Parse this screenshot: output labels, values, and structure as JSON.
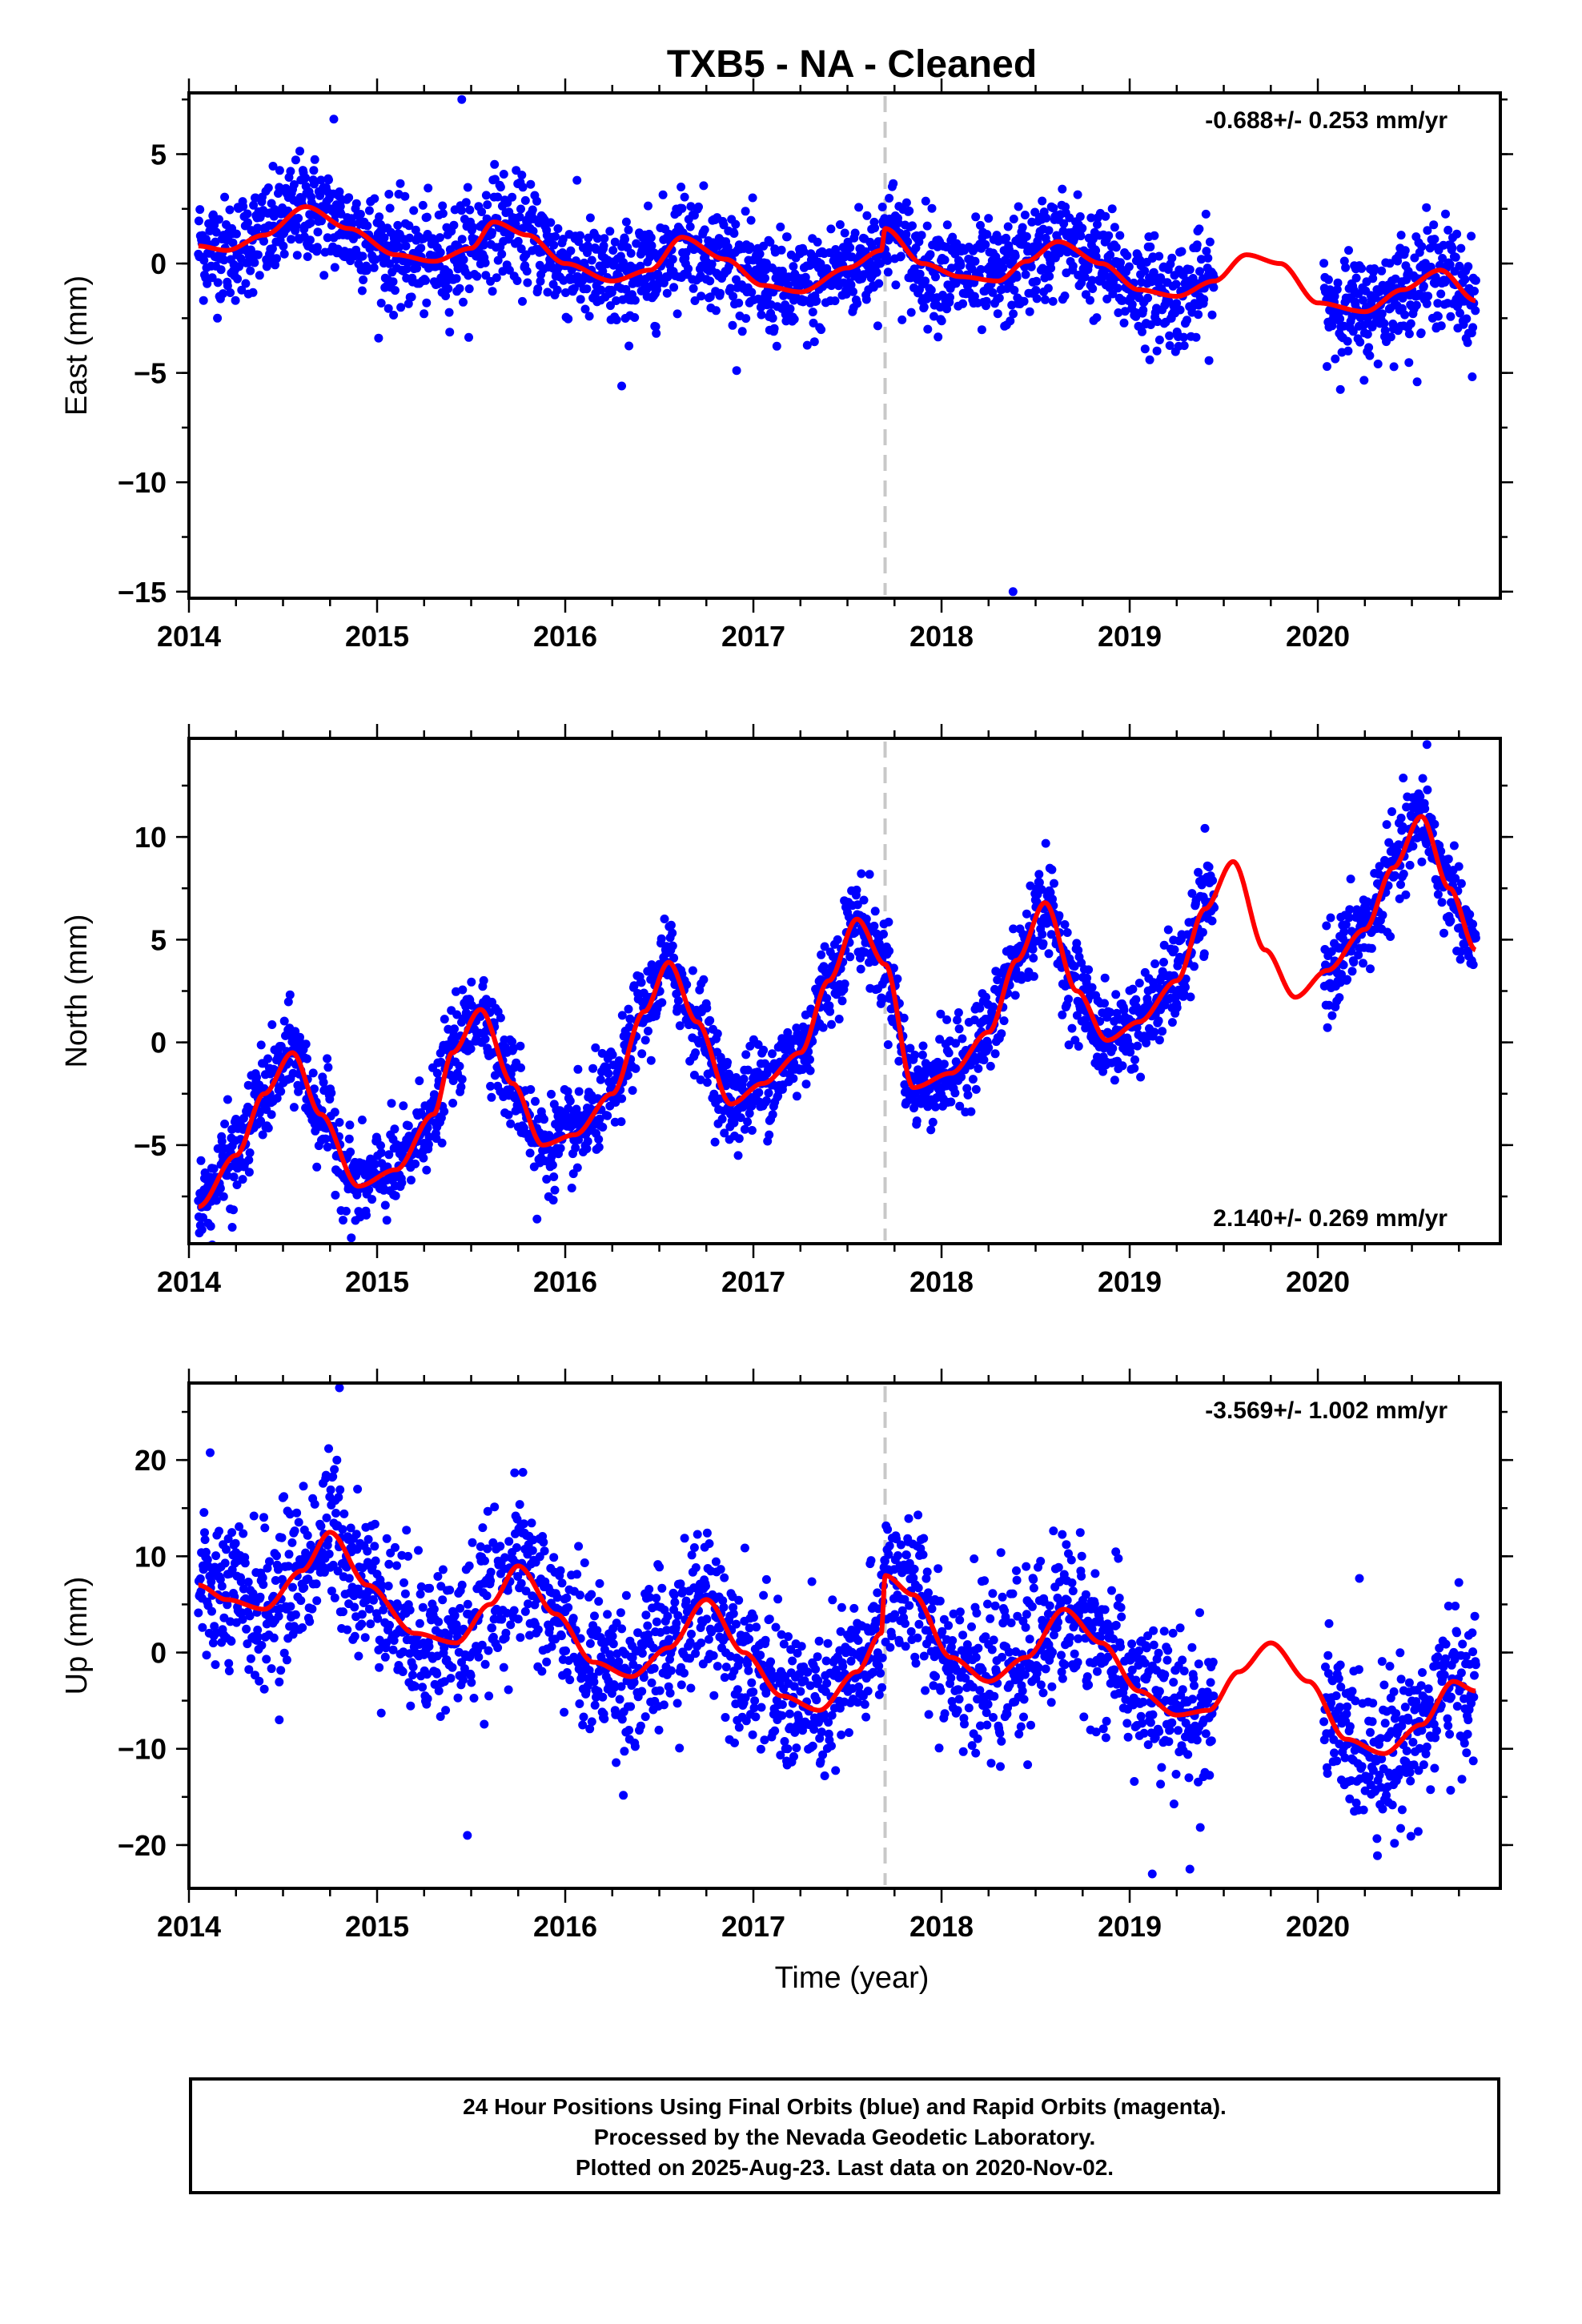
{
  "title": "TXB5  - NA - Cleaned",
  "xlabel": "Time (year)",
  "footer": {
    "line1": "24 Hour Positions Using Final Orbits (blue) and Rapid Orbits (magenta).",
    "line2": "Processed by the Nevada Geodetic Laboratory.",
    "line3": "Plotted on 2025-Aug-23. Last data on 2020-Nov-02."
  },
  "colors": {
    "points": "#0000ff",
    "fit": "#ff0000",
    "offset_line": "#c8c8c8"
  },
  "chart_data": [
    {
      "type": "scatter",
      "name": "east",
      "ylabel": "East (mm)",
      "rate_text": "-0.688+/- 0.253 mm/yr",
      "rate_position": "top-right",
      "xlim": [
        2014.0,
        2020.97
      ],
      "ylim": [
        -15.3,
        7.8
      ],
      "yticks": [
        5,
        0,
        -5,
        -10,
        -15
      ],
      "xticks": [
        2014,
        2015,
        2016,
        2017,
        2018,
        2019,
        2020
      ],
      "offset_epoch": 2017.7,
      "data_gap": [
        2019.45,
        2020.03
      ],
      "data_start": 2014.05,
      "data_end": 2020.84,
      "scatter_sd_mm": 1.2,
      "outliers": [
        [
          2018.38,
          -15.0
        ],
        [
          2015.45,
          7.5
        ],
        [
          2014.77,
          6.6
        ],
        [
          2016.3,
          -5.6
        ]
      ],
      "fit_curve": [
        [
          2014.05,
          0.8
        ],
        [
          2014.2,
          0.6
        ],
        [
          2014.4,
          1.3
        ],
        [
          2014.62,
          2.6
        ],
        [
          2014.85,
          1.6
        ],
        [
          2015.1,
          0.4
        ],
        [
          2015.3,
          0.1
        ],
        [
          2015.5,
          0.7
        ],
        [
          2015.62,
          1.9
        ],
        [
          2015.8,
          1.3
        ],
        [
          2016.0,
          0.0
        ],
        [
          2016.25,
          -0.8
        ],
        [
          2016.45,
          -0.3
        ],
        [
          2016.62,
          1.2
        ],
        [
          2016.85,
          0.2
        ],
        [
          2017.05,
          -1.0
        ],
        [
          2017.25,
          -1.3
        ],
        [
          2017.5,
          -0.2
        ],
        [
          2017.68,
          0.6
        ],
        [
          2017.7,
          1.6
        ],
        [
          2017.9,
          0.0
        ],
        [
          2018.1,
          -0.6
        ],
        [
          2018.3,
          -0.8
        ],
        [
          2018.45,
          0.1
        ],
        [
          2018.62,
          1.0
        ],
        [
          2018.85,
          0.0
        ],
        [
          2019.05,
          -1.2
        ],
        [
          2019.25,
          -1.5
        ],
        [
          2019.45,
          -0.8
        ],
        [
          2019.62,
          0.4
        ],
        [
          2019.8,
          0.0
        ],
        [
          2020.0,
          -1.8
        ],
        [
          2020.25,
          -2.2
        ],
        [
          2020.45,
          -1.2
        ],
        [
          2020.65,
          -0.3
        ],
        [
          2020.84,
          -1.7
        ]
      ]
    },
    {
      "type": "scatter",
      "name": "north",
      "ylabel": "North (mm)",
      "rate_text": "2.140+/- 0.269 mm/yr",
      "rate_position": "bottom-right",
      "xlim": [
        2014.0,
        2020.97
      ],
      "ylim": [
        -9.8,
        14.8
      ],
      "yticks": [
        10,
        5,
        0,
        -5
      ],
      "xticks": [
        2014,
        2015,
        2016,
        2017,
        2018,
        2019,
        2020
      ],
      "offset_epoch": 2017.7,
      "data_gap": [
        2019.45,
        2020.03
      ],
      "data_start": 2014.05,
      "data_end": 2020.84,
      "scatter_sd_mm": 1.1,
      "outliers": [
        [
          2020.58,
          14.5
        ],
        [
          2014.23,
          -9.0
        ],
        [
          2015.85,
          -8.6
        ]
      ],
      "fit_curve": [
        [
          2014.05,
          -8.0
        ],
        [
          2014.25,
          -5.5
        ],
        [
          2014.4,
          -2.5
        ],
        [
          2014.55,
          -0.5
        ],
        [
          2014.7,
          -3.5
        ],
        [
          2014.9,
          -7.0
        ],
        [
          2015.1,
          -6.2
        ],
        [
          2015.3,
          -3.5
        ],
        [
          2015.4,
          -0.5
        ],
        [
          2015.55,
          1.6
        ],
        [
          2015.72,
          -2.0
        ],
        [
          2015.88,
          -5.0
        ],
        [
          2016.05,
          -4.5
        ],
        [
          2016.25,
          -2.5
        ],
        [
          2016.42,
          1.5
        ],
        [
          2016.55,
          3.9
        ],
        [
          2016.7,
          1.0
        ],
        [
          2016.88,
          -3.0
        ],
        [
          2017.05,
          -2.0
        ],
        [
          2017.25,
          -0.5
        ],
        [
          2017.4,
          3.0
        ],
        [
          2017.55,
          6.0
        ],
        [
          2017.7,
          3.8
        ],
        [
          2017.85,
          -2.2
        ],
        [
          2018.05,
          -1.5
        ],
        [
          2018.25,
          0.5
        ],
        [
          2018.4,
          4.0
        ],
        [
          2018.55,
          6.8
        ],
        [
          2018.72,
          2.5
        ],
        [
          2018.88,
          0.1
        ],
        [
          2019.05,
          1.0
        ],
        [
          2019.25,
          3.0
        ],
        [
          2019.4,
          6.5
        ],
        [
          2019.55,
          8.8
        ],
        [
          2019.72,
          4.5
        ],
        [
          2019.88,
          2.2
        ],
        [
          2020.05,
          3.5
        ],
        [
          2020.25,
          5.5
        ],
        [
          2020.4,
          8.5
        ],
        [
          2020.55,
          11.0
        ],
        [
          2020.7,
          7.5
        ],
        [
          2020.84,
          4.5
        ]
      ]
    },
    {
      "type": "scatter",
      "name": "up",
      "ylabel": "Up (mm)",
      "rate_text": "-3.569+/- 1.002 mm/yr",
      "rate_position": "top-right",
      "xlim": [
        2014.0,
        2020.97
      ],
      "ylim": [
        -24.5,
        28.0
      ],
      "yticks": [
        20,
        10,
        0,
        -10,
        -20
      ],
      "xticks": [
        2014,
        2015,
        2016,
        2017,
        2018,
        2019,
        2020
      ],
      "offset_epoch": 2017.7,
      "data_gap": [
        2019.45,
        2020.03
      ],
      "data_start": 2014.05,
      "data_end": 2020.84,
      "scatter_sd_mm": 4.0,
      "outliers": [
        [
          2014.8,
          27.5
        ],
        [
          2015.48,
          -19.0
        ],
        [
          2019.12,
          -23.0
        ],
        [
          2019.32,
          -22.5
        ],
        [
          2014.48,
          -7.0
        ]
      ],
      "fit_curve": [
        [
          2014.05,
          7.0
        ],
        [
          2014.2,
          5.5
        ],
        [
          2014.4,
          4.5
        ],
        [
          2014.6,
          8.5
        ],
        [
          2014.75,
          12.5
        ],
        [
          2014.95,
          7.0
        ],
        [
          2015.2,
          2.0
        ],
        [
          2015.42,
          1.0
        ],
        [
          2015.6,
          5.0
        ],
        [
          2015.75,
          9.0
        ],
        [
          2015.95,
          4.0
        ],
        [
          2016.15,
          -1.0
        ],
        [
          2016.35,
          -2.5
        ],
        [
          2016.55,
          0.5
        ],
        [
          2016.75,
          5.5
        ],
        [
          2016.95,
          0.0
        ],
        [
          2017.15,
          -4.5
        ],
        [
          2017.35,
          -6.0
        ],
        [
          2017.55,
          -2.0
        ],
        [
          2017.68,
          2.0
        ],
        [
          2017.7,
          8.0
        ],
        [
          2017.85,
          6.0
        ],
        [
          2018.05,
          -0.5
        ],
        [
          2018.25,
          -3.0
        ],
        [
          2018.45,
          -0.5
        ],
        [
          2018.65,
          4.5
        ],
        [
          2018.85,
          1.0
        ],
        [
          2019.05,
          -4.0
        ],
        [
          2019.25,
          -6.5
        ],
        [
          2019.42,
          -6.0
        ],
        [
          2019.58,
          -2.0
        ],
        [
          2019.75,
          1.0
        ],
        [
          2019.95,
          -3.0
        ],
        [
          2020.15,
          -9.0
        ],
        [
          2020.35,
          -10.5
        ],
        [
          2020.55,
          -7.5
        ],
        [
          2020.72,
          -3.0
        ],
        [
          2020.84,
          -4.0
        ]
      ]
    }
  ]
}
